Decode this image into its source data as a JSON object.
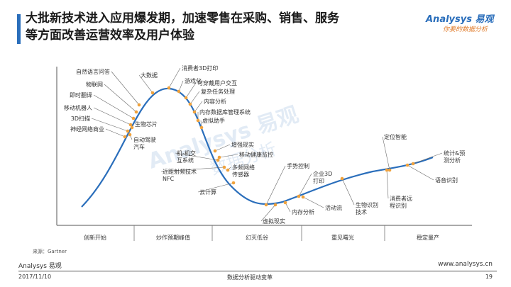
{
  "header": {
    "title_line1": "大批新技术进入应用爆发期，加速零售在采购、销售、服务",
    "title_line2": "等方面改善运营效率及用户体验"
  },
  "logo": {
    "brand": "Analysys 易观",
    "slogan": "你要的数据分析"
  },
  "watermark": {
    "brand": "Analysys 易观",
    "slogan": "数据分析"
  },
  "diagram": {
    "phases": [
      "创新开始",
      "炒作预期峰值",
      "幻灭低谷",
      "重见曙光",
      "稳定量产"
    ],
    "technologies": [
      "自然语言问答",
      "物联网",
      "即时翻译",
      "移动机器人",
      "3D扫描",
      "神经网络商业",
      "大数据",
      "消费者3D打印",
      "游戏化",
      "可穿戴用户交互",
      "复杂任务处理",
      "内容分析",
      "内存数据库管理系统",
      "虚拟助手",
      "生物芯片",
      "自动驾驶\n汽车",
      "增强现实",
      "移动健康监控",
      "机-机交\n互系统",
      "多频网络\n传感器",
      "近距射频技术\nNFC",
      "云计算",
      "手势控制",
      "企业3D\n打印",
      "活动流",
      "内存分析",
      "虚拟现实",
      "定位智能",
      "统计&预\n测分析",
      "语音识别",
      "消费者远\n程识别",
      "生物识别\n技术"
    ]
  },
  "source": "来源：Gartner",
  "footer": {
    "left": "Analysys 易观",
    "right": "www.analysys.cn",
    "date": "2017/11/10",
    "center": "数据分析驱动变革",
    "page": "19"
  },
  "colors": {
    "accent": "#2a6ebb",
    "dot": "#f0a23c",
    "logo_orange": "#e07b2a"
  }
}
